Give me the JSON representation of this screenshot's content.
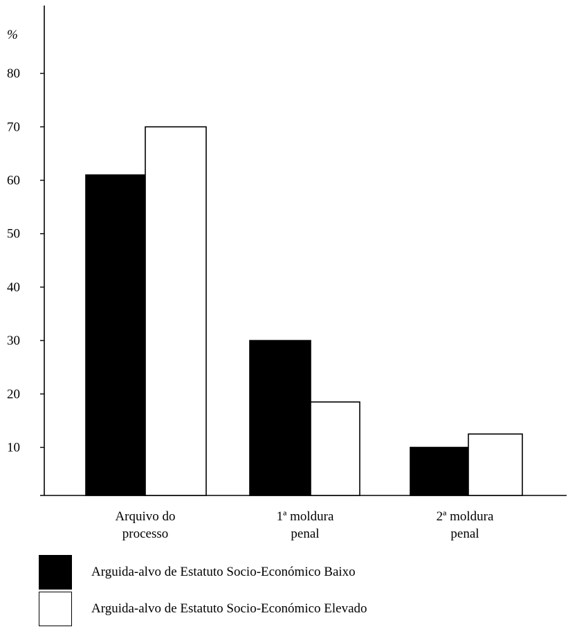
{
  "chart_data": {
    "type": "bar",
    "y_unit_label": "%",
    "categories": [
      [
        "Arquivo do",
        "processo"
      ],
      [
        "1ª moldura",
        "penal"
      ],
      [
        "2ª moldura",
        "penal"
      ]
    ],
    "series": [
      {
        "name": "Arguida-alvo de Estatuto Socio-Económico Baixo",
        "values": [
          61,
          30,
          10
        ],
        "fill": "#000000"
      },
      {
        "name": "Arguida-alvo de Estatuto Socio-Económico Elevado",
        "values": [
          70,
          18.5,
          12.5
        ],
        "fill": "#ffffff"
      }
    ],
    "yticks": [
      10,
      20,
      30,
      40,
      50,
      60,
      70,
      80
    ],
    "ylim": [
      1,
      88
    ],
    "grid": false,
    "legend_position": "bottom-left"
  }
}
